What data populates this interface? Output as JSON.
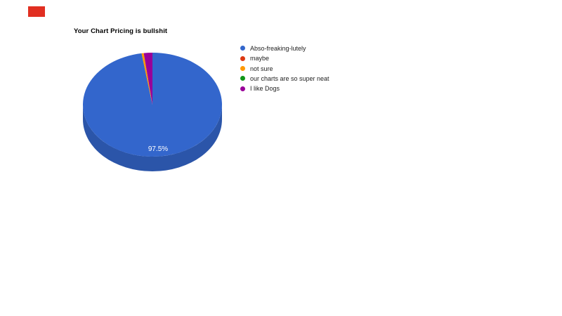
{
  "annotation": {
    "color": "#e12f21"
  },
  "chart_data": {
    "type": "pie",
    "is_3d": true,
    "title": "Your Chart Pricing is bullshit",
    "title_color": "#000000",
    "background": "#ffffff",
    "categories": [
      "Abso-freaking-lutely",
      "maybe",
      "not sure",
      "our charts are so super neat",
      "I like Dogs"
    ],
    "values": [
      97.5,
      0,
      0.5,
      0,
      2
    ],
    "value_format": "percent",
    "colors": [
      "#3366cc",
      "#dc3912",
      "#ff9900",
      "#109618",
      "#990099"
    ],
    "depth_color": "#2b55a9",
    "slice_label": "97.5%",
    "slice_label_color": "#ffffff",
    "legend_position": "right",
    "legend_text_color": "#222222"
  }
}
